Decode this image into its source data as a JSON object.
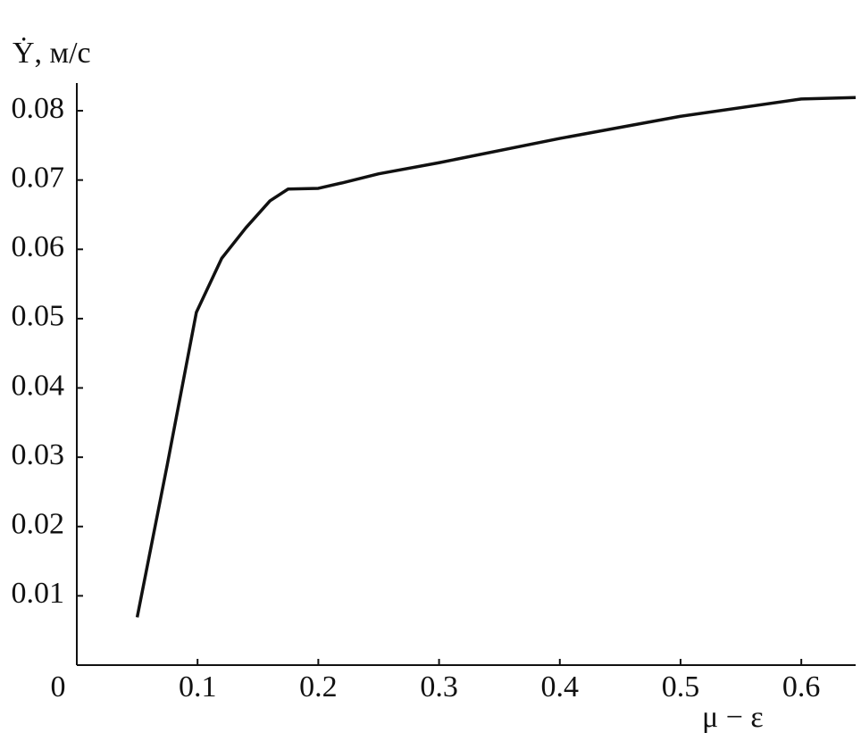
{
  "chart_data": {
    "type": "line",
    "y_label": "Ẏ, м/с",
    "x_label": "μ − ε",
    "x": [
      0.05,
      0.075,
      0.099,
      0.12,
      0.14,
      0.16,
      0.175,
      0.2,
      0.22,
      0.25,
      0.3,
      0.4,
      0.5,
      0.6,
      0.645
    ],
    "series": [
      {
        "color": "#111111",
        "values": [
          0.0069,
          0.029,
          0.0509,
          0.0587,
          0.0631,
          0.067,
          0.0687,
          0.0688,
          0.0696,
          0.0709,
          0.0725,
          0.076,
          0.0792,
          0.0817,
          0.0819
        ]
      }
    ],
    "xlim": [
      0,
      0.645
    ],
    "xticks": [
      0,
      0.1,
      0.2,
      0.3,
      0.4,
      0.5,
      0.6
    ],
    "ylim": [
      0,
      0.084
    ],
    "yticks": [
      0.01,
      0.02,
      0.03,
      0.04,
      0.05,
      0.06,
      0.07,
      0.08
    ],
    "grid": false
  }
}
